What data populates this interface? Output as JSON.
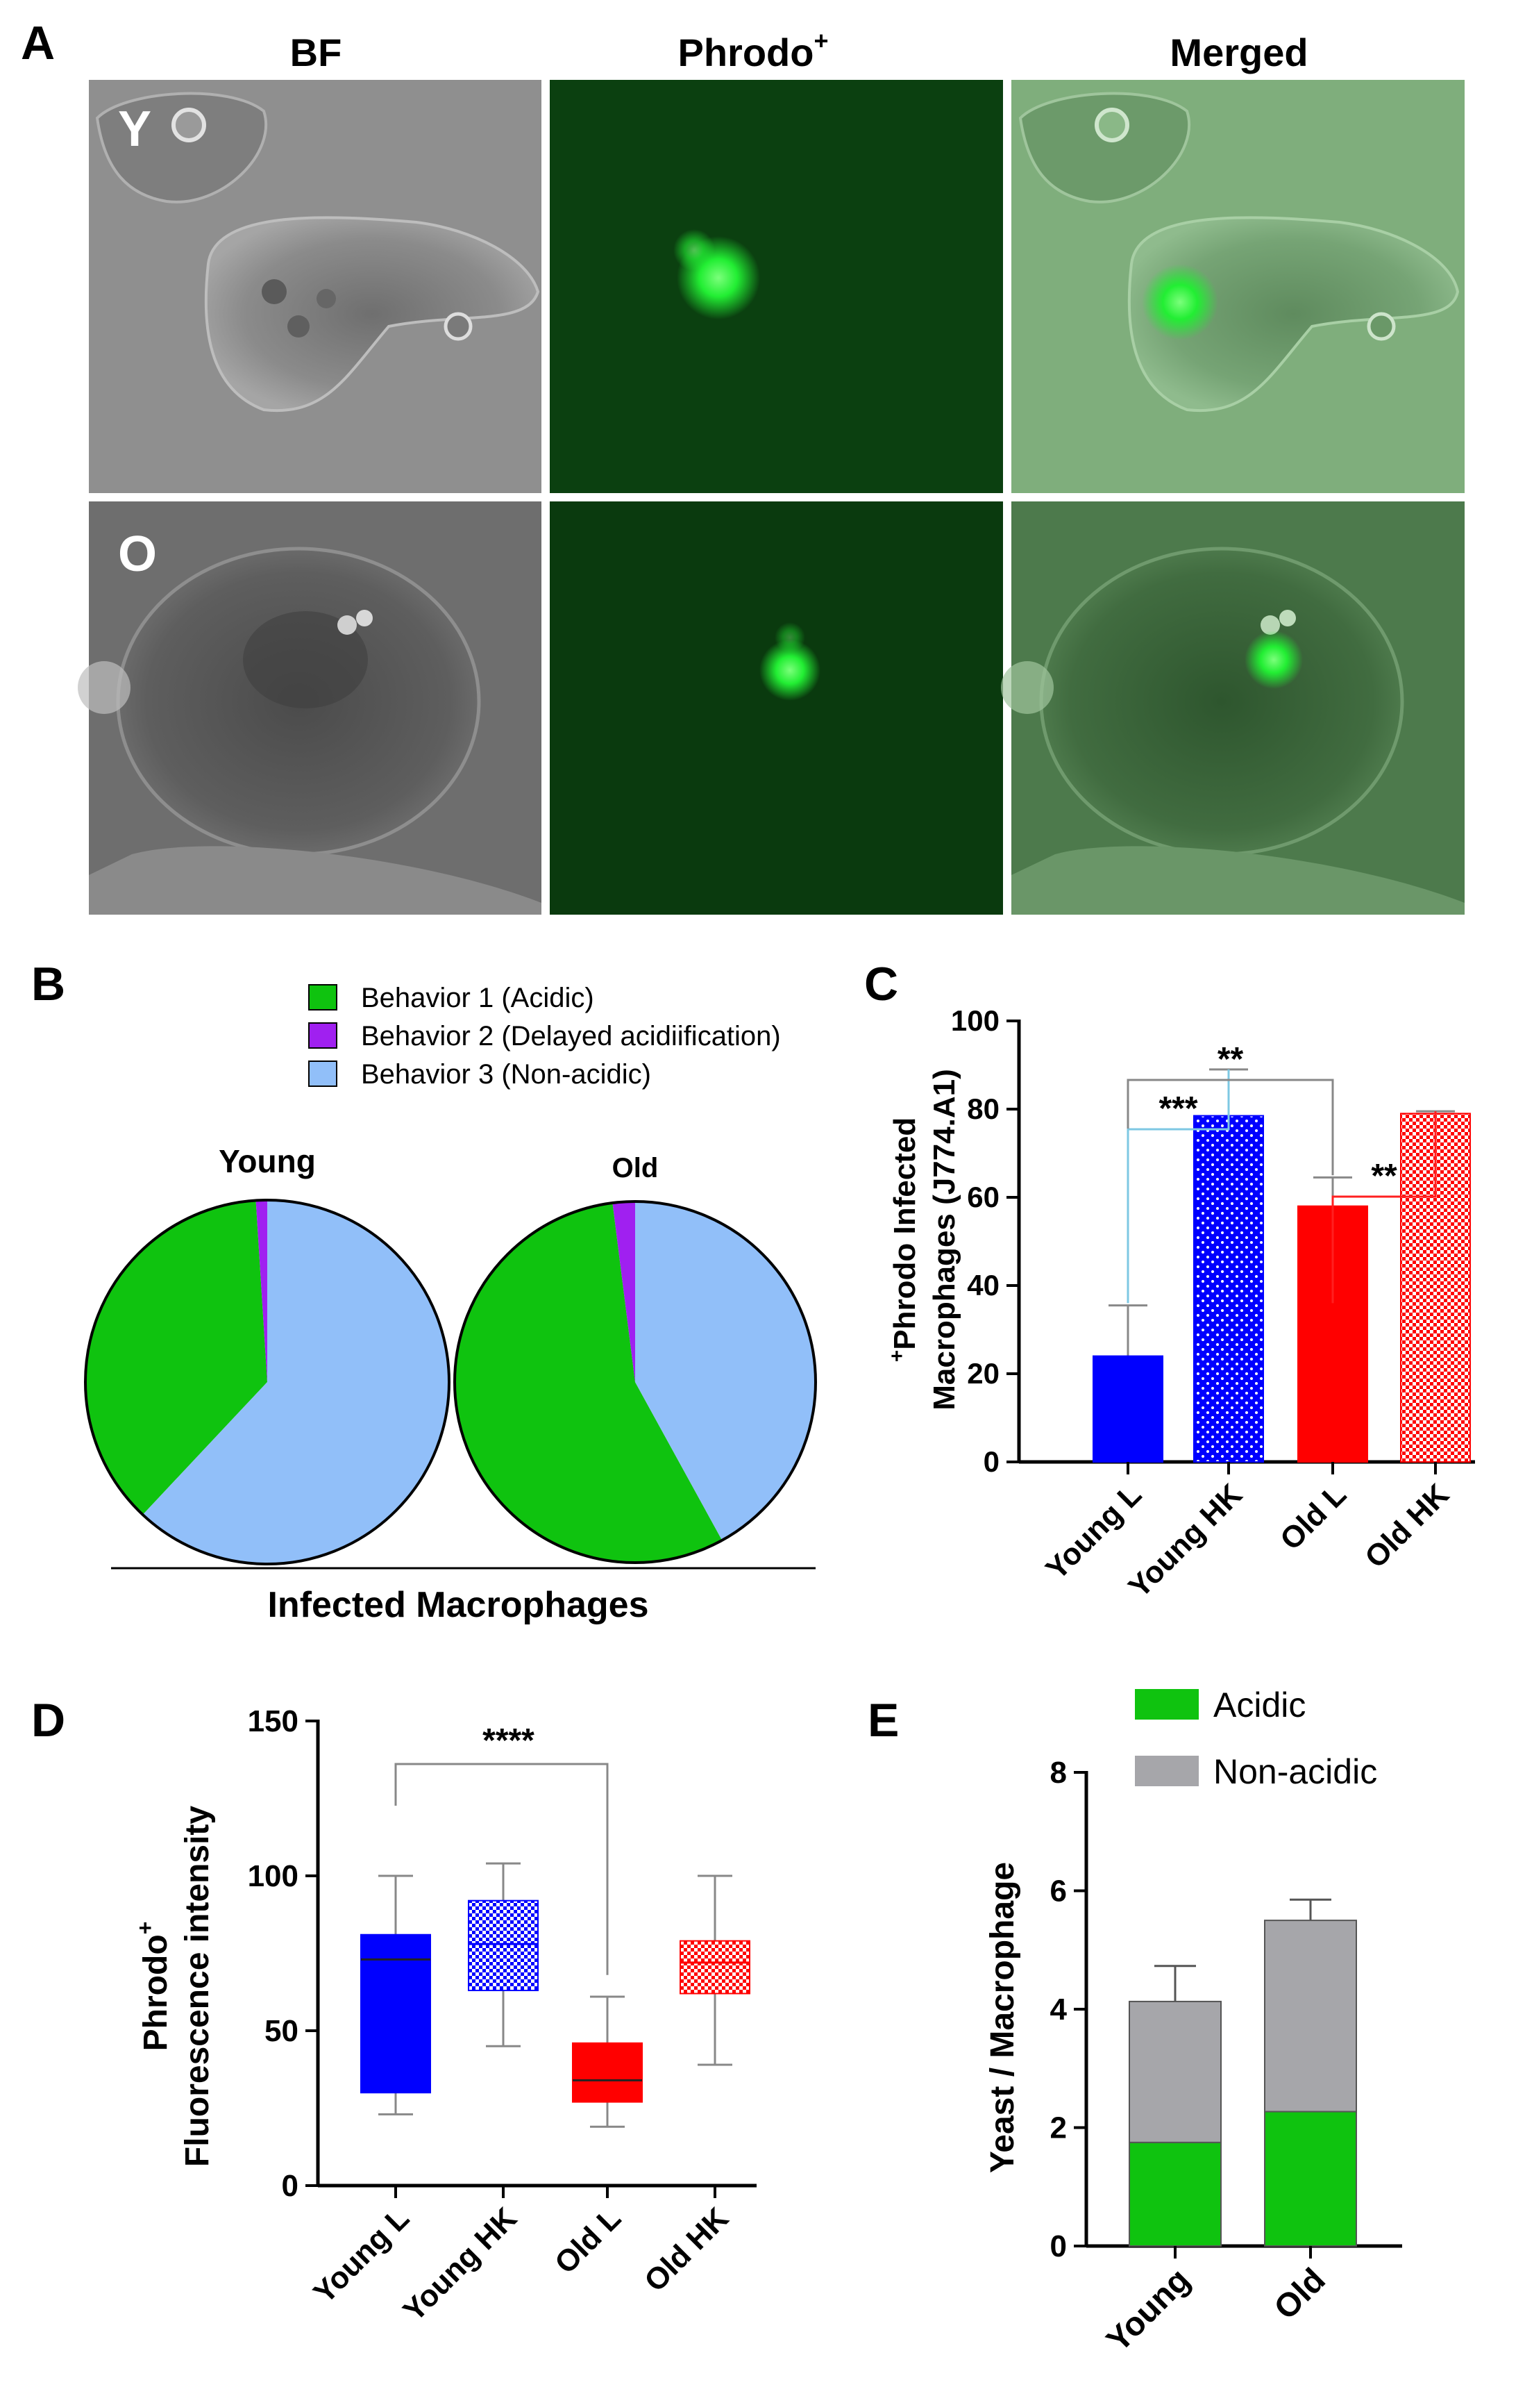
{
  "panelA": {
    "letter": "A",
    "columns": [
      "BF",
      "Phrodo",
      "Merged"
    ],
    "phrodo_superscript": "+",
    "rows": [
      "Y",
      "O"
    ],
    "colors": {
      "bf": "#8a8a8a",
      "fluor": "#0b4010",
      "merged": "#7aa878",
      "spot": "#22ee33"
    }
  },
  "panelB": {
    "letter": "B",
    "legend": [
      "Behavior 1 (Acidic)",
      "Behavior 2 (Delayed acidiification)",
      "Behavior 3 (Non-acidic)"
    ],
    "xlabel": "Infected Macrophages",
    "colors": [
      "#0fc30f",
      "#a020f0",
      "#91bff9"
    ]
  },
  "panelC": {
    "letter": "C"
  },
  "panelD": {
    "letter": "D"
  },
  "panelE": {
    "letter": "E"
  },
  "chart_data": [
    {
      "panel": "B",
      "type": "pie",
      "charts": [
        {
          "title": "Young",
          "labels": [
            "Behavior 1 (Acidic)",
            "Behavior 2 (Delayed acidiification)",
            "Behavior 3 (Non-acidic)"
          ],
          "values": [
            37,
            1,
            62
          ]
        },
        {
          "title": "Old",
          "labels": [
            "Behavior 1 (Acidic)",
            "Behavior 2 (Delayed acidiification)",
            "Behavior 3 (Non-acidic)"
          ],
          "values": [
            56,
            2,
            42
          ]
        }
      ]
    },
    {
      "panel": "C",
      "type": "bar",
      "categories": [
        "Young L",
        "Young HK",
        "Old L",
        "Old HK"
      ],
      "values": [
        24,
        78.5,
        58,
        79
      ],
      "errors": [
        11.5,
        10.5,
        6.5,
        0.5
      ],
      "patterns": [
        "solid",
        "dots",
        "solid",
        "checker"
      ],
      "colors": [
        "#0000ff",
        "#0000ff",
        "#ff0000",
        "#ff0000"
      ],
      "ylabel_prefix_sup": "+",
      "ylabel_line1": "Phrodo Infected",
      "ylabel_line2": "Macrophages (J774.A1)",
      "ylim": [
        0,
        100
      ],
      "yticks": [
        0,
        20,
        40,
        60,
        80,
        100
      ],
      "significance": [
        {
          "from": 0,
          "to": 1,
          "label": "***",
          "color": "#7ec8e3"
        },
        {
          "from": 0,
          "to": 2,
          "label": "**",
          "color": "#888888"
        },
        {
          "from": 2,
          "to": 3,
          "label": "**",
          "color": "#ff2020"
        }
      ]
    },
    {
      "panel": "D",
      "type": "box",
      "categories": [
        "Young L",
        "Young HK",
        "Old L",
        "Old HK"
      ],
      "boxes": [
        {
          "min": 23,
          "q1": 30,
          "median": 73,
          "q3": 81,
          "max": 100
        },
        {
          "min": 45,
          "q1": 63,
          "median": 78,
          "q3": 92,
          "max": 104
        },
        {
          "min": 19,
          "q1": 27,
          "median": 34,
          "q3": 46,
          "max": 61
        },
        {
          "min": 39,
          "q1": 62,
          "median": 72,
          "q3": 79,
          "max": 100
        }
      ],
      "patterns": [
        "solid",
        "checker",
        "solid",
        "checker"
      ],
      "colors": [
        "#0000ff",
        "#0000ff",
        "#ff0000",
        "#ff0000"
      ],
      "ylabel_line1": "Phrodo",
      "ylabel_sup": "+",
      "ylabel_line2": "Fluorescence intensity",
      "ylim": [
        0,
        150
      ],
      "yticks": [
        0,
        50,
        100,
        150
      ],
      "significance": [
        {
          "from": 0,
          "to": 2,
          "label": "****",
          "color": "#888888"
        }
      ]
    },
    {
      "panel": "E",
      "type": "bar",
      "stacked": true,
      "categories": [
        "Young",
        "Old"
      ],
      "series": [
        {
          "name": "Acidic",
          "values": [
            1.75,
            2.27
          ],
          "errors": [
            0.15,
            0.02
          ],
          "color": "#0fc30f"
        },
        {
          "name": "Non-acidic",
          "values": [
            2.38,
            3.23
          ],
          "errors": [
            0.6,
            0.35
          ],
          "color": "#a6a6aa"
        }
      ],
      "ylabel": "Yeast / Macrophage",
      "ylim": [
        0,
        8
      ],
      "yticks": [
        0,
        2,
        4,
        6,
        8
      ],
      "legend_position": "top"
    }
  ]
}
